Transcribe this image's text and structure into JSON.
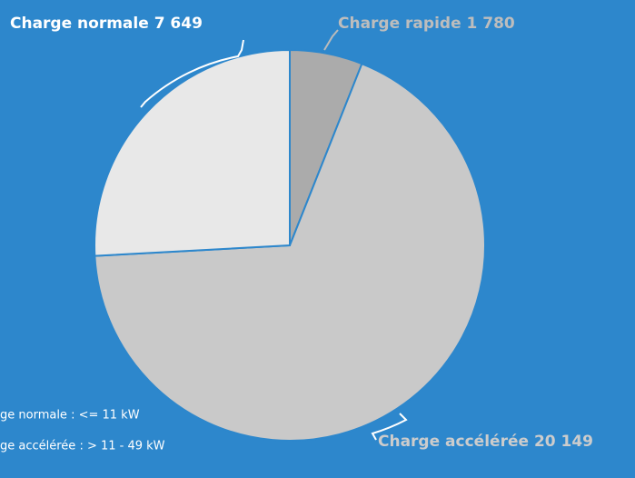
{
  "chart_data": {
    "type": "pie",
    "categories": [
      "Charge rapide",
      "Charge accélérée",
      "Charge normale"
    ],
    "values": [
      1780,
      20149,
      7649
    ],
    "value_labels": [
      "1 780",
      "20 149",
      "7 649"
    ],
    "colors": [
      "#ababab",
      "#c9c9c9",
      "#e8e8e8"
    ],
    "legend": [
      "ge normale : <= 11 kW",
      "ge accélérée : > 11 - 49 kW"
    ]
  }
}
